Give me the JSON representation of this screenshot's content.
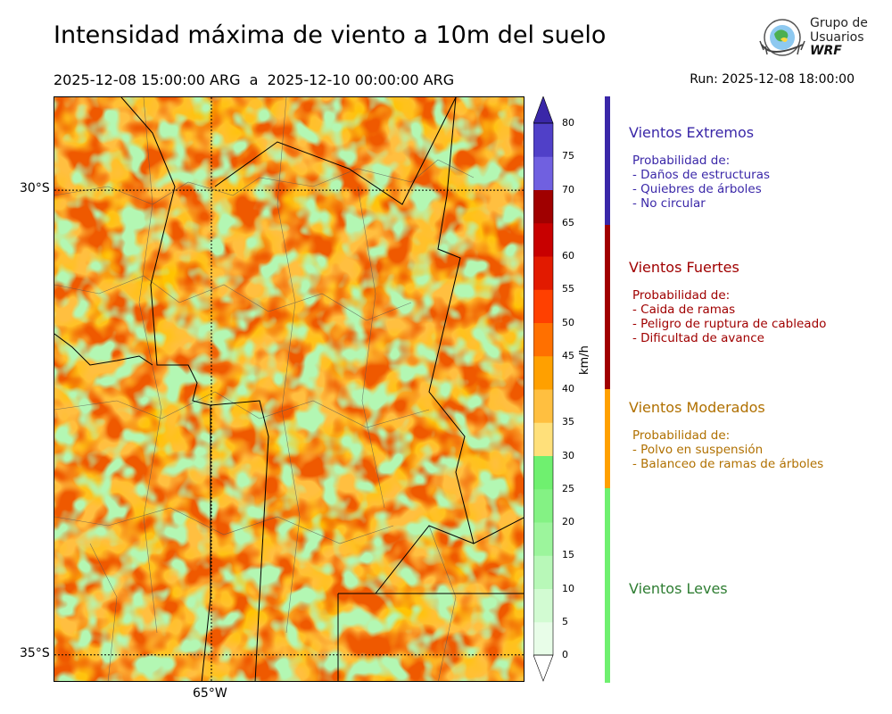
{
  "header": {
    "title": "Intensidad máxima de viento a 10m del suelo",
    "period": "2025-12-08 15:00:00 ARG  a  2025-12-10 00:00:00 ARG",
    "run": "Run: 2025-12-08 18:00:00"
  },
  "logo": {
    "line1": "Grupo de",
    "line2": "Usuarios",
    "line3": "WRF"
  },
  "map": {
    "lat_labels": [
      "30°S",
      "35°S"
    ],
    "lon_labels": [
      "65°W"
    ],
    "extent": {
      "lon_min": -66.7,
      "lon_max": -61.6,
      "lat_min": -35.3,
      "lat_max": -29.0
    }
  },
  "colorbar": {
    "unit": "km/h",
    "ticks": [
      "0",
      "5",
      "10",
      "15",
      "20",
      "25",
      "30",
      "35",
      "40",
      "45",
      "50",
      "55",
      "60",
      "65",
      "70",
      "75",
      "80"
    ],
    "colors": [
      "#e8fde8",
      "#d2fbd2",
      "#b8f8b8",
      "#9cf59c",
      "#84f284",
      "#6ff06f",
      "#ffe07a",
      "#ffbf40",
      "#ffa000",
      "#ff7000",
      "#ff4000",
      "#e21a00",
      "#c80000",
      "#a00000",
      "#7060e0",
      "#5040c8",
      "#4030b0"
    ],
    "max_color": "#3a27a8",
    "min_color": "#ffffff"
  },
  "categories": [
    {
      "name": "Vientos Extremos",
      "color": "#3a27a8",
      "desc": [
        "Probabilidad de:",
        "- Daños de estructuras",
        "- Quiebres de árboles",
        "- No circular"
      ]
    },
    {
      "name": "Vientos Fuertes",
      "color": "#a00000",
      "desc": [
        "Probabilidad de:",
        "- Caida de ramas",
        "- Peligro de ruptura de cableado",
        "- Dificultad de avance"
      ]
    },
    {
      "name": "Vientos Moderados",
      "color": "#b07000",
      "bar_color": "#ffa000",
      "desc": [
        "Probabilidad de:",
        "- Polvo en suspensión",
        "- Balanceo de ramas de árboles"
      ]
    },
    {
      "name": "Vientos Leves",
      "color": "#2e7d32",
      "bar_color": "#6ff06f",
      "desc": []
    }
  ]
}
